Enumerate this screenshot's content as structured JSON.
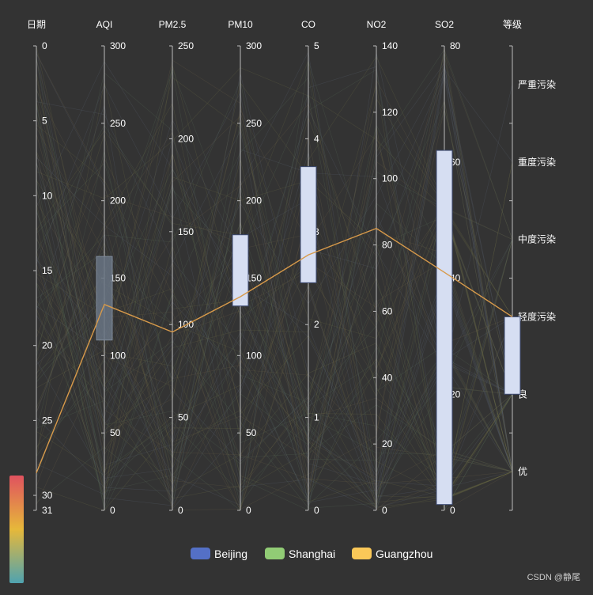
{
  "chart_data": {
    "type": "parallel",
    "title": "",
    "axes": [
      {
        "name": "日期",
        "type": "value",
        "min": 0,
        "max": 31,
        "inverse": true,
        "ticks": [
          0,
          5,
          10,
          15,
          20,
          25,
          30,
          31
        ]
      },
      {
        "name": "AQI",
        "type": "value",
        "min": 0,
        "max": 300,
        "ticks": [
          0,
          50,
          100,
          150,
          200,
          250,
          300
        ]
      },
      {
        "name": "PM2.5",
        "type": "value",
        "min": 0,
        "max": 250,
        "ticks": [
          0,
          50,
          100,
          150,
          200,
          250
        ]
      },
      {
        "name": "PM10",
        "type": "value",
        "min": 0,
        "max": 300,
        "ticks": [
          0,
          50,
          100,
          150,
          200,
          250,
          300
        ]
      },
      {
        "name": "CO",
        "type": "value",
        "min": 0,
        "max": 5,
        "ticks": [
          0,
          1,
          2,
          3,
          4,
          5
        ]
      },
      {
        "name": "NO2",
        "type": "value",
        "min": 0,
        "max": 140,
        "ticks": [
          0,
          20,
          40,
          60,
          80,
          100,
          120,
          140
        ]
      },
      {
        "name": "SO2",
        "type": "value",
        "min": 0,
        "max": 80,
        "ticks": [
          0,
          20,
          40,
          60,
          80
        ]
      },
      {
        "name": "等级",
        "type": "category",
        "categories": [
          "优",
          "良",
          "轻度污染",
          "中度污染",
          "重度污染",
          "严重污染"
        ]
      }
    ],
    "brush_selections": [
      {
        "axis": "AQI",
        "range": [
          110,
          164
        ],
        "style": "dark"
      },
      {
        "axis": "PM10",
        "range": [
          132,
          178
        ],
        "style": "light"
      },
      {
        "axis": "CO",
        "range": [
          2.45,
          3.7
        ],
        "style": "light"
      },
      {
        "axis": "SO2",
        "range": [
          1,
          62
        ],
        "style": "light"
      },
      {
        "axis": "等级",
        "category_range": [
          "良",
          "轻度污染"
        ],
        "style": "light"
      }
    ],
    "highlighted_line": {
      "series": "Guangzhou",
      "values": [
        28.5,
        133,
        96,
        138,
        2.75,
        85,
        41,
        "轻度污染"
      ]
    },
    "background_lines_note": "Multiple faint lines per city across all days (decorative, not individually legible)",
    "legend": [
      {
        "name": "Beijing",
        "color": "#5470c6"
      },
      {
        "name": "Shanghai",
        "color": "#91cc75"
      },
      {
        "name": "Guangzhou",
        "color": "#fac858"
      }
    ],
    "visual_map": {
      "colors": [
        "#e0525f",
        "#e6b83a",
        "#4fa3b0"
      ]
    }
  },
  "watermark": "CSDN @静尾"
}
